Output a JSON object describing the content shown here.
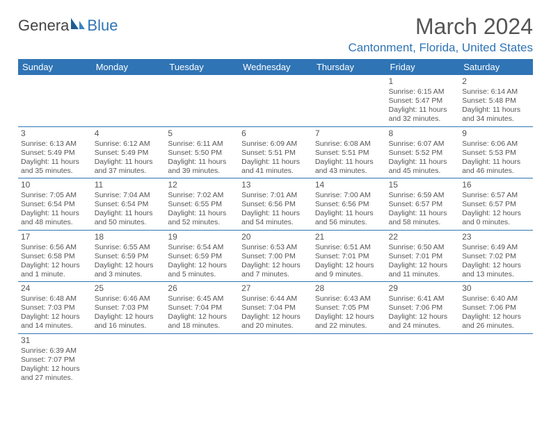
{
  "logo": {
    "text1": "Genera",
    "text2": "Blue"
  },
  "title": "March 2024",
  "location": "Cantonment, Florida, United States",
  "headers": [
    "Sunday",
    "Monday",
    "Tuesday",
    "Wednesday",
    "Thursday",
    "Friday",
    "Saturday"
  ],
  "colors": {
    "accent": "#2f74b5",
    "text": "#555555",
    "bg": "#ffffff"
  },
  "weeks": [
    [
      null,
      null,
      null,
      null,
      null,
      {
        "n": "1",
        "sr": "Sunrise: 6:15 AM",
        "ss": "Sunset: 5:47 PM",
        "d1": "Daylight: 11 hours",
        "d2": "and 32 minutes."
      },
      {
        "n": "2",
        "sr": "Sunrise: 6:14 AM",
        "ss": "Sunset: 5:48 PM",
        "d1": "Daylight: 11 hours",
        "d2": "and 34 minutes."
      }
    ],
    [
      {
        "n": "3",
        "sr": "Sunrise: 6:13 AM",
        "ss": "Sunset: 5:49 PM",
        "d1": "Daylight: 11 hours",
        "d2": "and 35 minutes."
      },
      {
        "n": "4",
        "sr": "Sunrise: 6:12 AM",
        "ss": "Sunset: 5:49 PM",
        "d1": "Daylight: 11 hours",
        "d2": "and 37 minutes."
      },
      {
        "n": "5",
        "sr": "Sunrise: 6:11 AM",
        "ss": "Sunset: 5:50 PM",
        "d1": "Daylight: 11 hours",
        "d2": "and 39 minutes."
      },
      {
        "n": "6",
        "sr": "Sunrise: 6:09 AM",
        "ss": "Sunset: 5:51 PM",
        "d1": "Daylight: 11 hours",
        "d2": "and 41 minutes."
      },
      {
        "n": "7",
        "sr": "Sunrise: 6:08 AM",
        "ss": "Sunset: 5:51 PM",
        "d1": "Daylight: 11 hours",
        "d2": "and 43 minutes."
      },
      {
        "n": "8",
        "sr": "Sunrise: 6:07 AM",
        "ss": "Sunset: 5:52 PM",
        "d1": "Daylight: 11 hours",
        "d2": "and 45 minutes."
      },
      {
        "n": "9",
        "sr": "Sunrise: 6:06 AM",
        "ss": "Sunset: 5:53 PM",
        "d1": "Daylight: 11 hours",
        "d2": "and 46 minutes."
      }
    ],
    [
      {
        "n": "10",
        "sr": "Sunrise: 7:05 AM",
        "ss": "Sunset: 6:54 PM",
        "d1": "Daylight: 11 hours",
        "d2": "and 48 minutes."
      },
      {
        "n": "11",
        "sr": "Sunrise: 7:04 AM",
        "ss": "Sunset: 6:54 PM",
        "d1": "Daylight: 11 hours",
        "d2": "and 50 minutes."
      },
      {
        "n": "12",
        "sr": "Sunrise: 7:02 AM",
        "ss": "Sunset: 6:55 PM",
        "d1": "Daylight: 11 hours",
        "d2": "and 52 minutes."
      },
      {
        "n": "13",
        "sr": "Sunrise: 7:01 AM",
        "ss": "Sunset: 6:56 PM",
        "d1": "Daylight: 11 hours",
        "d2": "and 54 minutes."
      },
      {
        "n": "14",
        "sr": "Sunrise: 7:00 AM",
        "ss": "Sunset: 6:56 PM",
        "d1": "Daylight: 11 hours",
        "d2": "and 56 minutes."
      },
      {
        "n": "15",
        "sr": "Sunrise: 6:59 AM",
        "ss": "Sunset: 6:57 PM",
        "d1": "Daylight: 11 hours",
        "d2": "and 58 minutes."
      },
      {
        "n": "16",
        "sr": "Sunrise: 6:57 AM",
        "ss": "Sunset: 6:57 PM",
        "d1": "Daylight: 12 hours",
        "d2": "and 0 minutes."
      }
    ],
    [
      {
        "n": "17",
        "sr": "Sunrise: 6:56 AM",
        "ss": "Sunset: 6:58 PM",
        "d1": "Daylight: 12 hours",
        "d2": "and 1 minute."
      },
      {
        "n": "18",
        "sr": "Sunrise: 6:55 AM",
        "ss": "Sunset: 6:59 PM",
        "d1": "Daylight: 12 hours",
        "d2": "and 3 minutes."
      },
      {
        "n": "19",
        "sr": "Sunrise: 6:54 AM",
        "ss": "Sunset: 6:59 PM",
        "d1": "Daylight: 12 hours",
        "d2": "and 5 minutes."
      },
      {
        "n": "20",
        "sr": "Sunrise: 6:53 AM",
        "ss": "Sunset: 7:00 PM",
        "d1": "Daylight: 12 hours",
        "d2": "and 7 minutes."
      },
      {
        "n": "21",
        "sr": "Sunrise: 6:51 AM",
        "ss": "Sunset: 7:01 PM",
        "d1": "Daylight: 12 hours",
        "d2": "and 9 minutes."
      },
      {
        "n": "22",
        "sr": "Sunrise: 6:50 AM",
        "ss": "Sunset: 7:01 PM",
        "d1": "Daylight: 12 hours",
        "d2": "and 11 minutes."
      },
      {
        "n": "23",
        "sr": "Sunrise: 6:49 AM",
        "ss": "Sunset: 7:02 PM",
        "d1": "Daylight: 12 hours",
        "d2": "and 13 minutes."
      }
    ],
    [
      {
        "n": "24",
        "sr": "Sunrise: 6:48 AM",
        "ss": "Sunset: 7:03 PM",
        "d1": "Daylight: 12 hours",
        "d2": "and 14 minutes."
      },
      {
        "n": "25",
        "sr": "Sunrise: 6:46 AM",
        "ss": "Sunset: 7:03 PM",
        "d1": "Daylight: 12 hours",
        "d2": "and 16 minutes."
      },
      {
        "n": "26",
        "sr": "Sunrise: 6:45 AM",
        "ss": "Sunset: 7:04 PM",
        "d1": "Daylight: 12 hours",
        "d2": "and 18 minutes."
      },
      {
        "n": "27",
        "sr": "Sunrise: 6:44 AM",
        "ss": "Sunset: 7:04 PM",
        "d1": "Daylight: 12 hours",
        "d2": "and 20 minutes."
      },
      {
        "n": "28",
        "sr": "Sunrise: 6:43 AM",
        "ss": "Sunset: 7:05 PM",
        "d1": "Daylight: 12 hours",
        "d2": "and 22 minutes."
      },
      {
        "n": "29",
        "sr": "Sunrise: 6:41 AM",
        "ss": "Sunset: 7:06 PM",
        "d1": "Daylight: 12 hours",
        "d2": "and 24 minutes."
      },
      {
        "n": "30",
        "sr": "Sunrise: 6:40 AM",
        "ss": "Sunset: 7:06 PM",
        "d1": "Daylight: 12 hours",
        "d2": "and 26 minutes."
      }
    ],
    [
      {
        "n": "31",
        "sr": "Sunrise: 6:39 AM",
        "ss": "Sunset: 7:07 PM",
        "d1": "Daylight: 12 hours",
        "d2": "and 27 minutes."
      },
      null,
      null,
      null,
      null,
      null,
      null
    ]
  ]
}
